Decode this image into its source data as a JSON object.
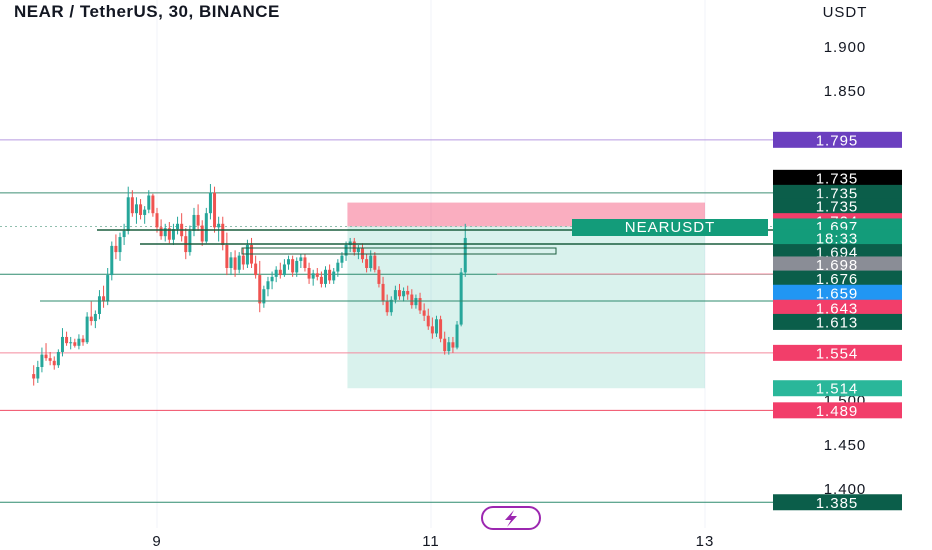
{
  "title": "NEAR / TetherUS, 30, BINANCE",
  "chart_data": {
    "type": "candlestick",
    "title": "NEAR / TetherUS, 30, BINANCE",
    "currency": "USDT",
    "symbol_label": "NEARUSDT",
    "countdown": "18:33",
    "y_ticks": [
      "1.900",
      "1.850",
      "1.500",
      "1.450",
      "1.400"
    ],
    "x_ticks": [
      "9",
      "11",
      "13"
    ],
    "ylim": [
      1.355,
      1.955
    ],
    "xlim": [
      8.1,
      13.5
    ],
    "price_tags": [
      {
        "label": "1.795",
        "value": 1.795,
        "bg": "#6b3fbf",
        "fg": "#ffffff"
      },
      {
        "label": "1.735",
        "value": 1.752,
        "bg": "#000000",
        "fg": "#ffffff"
      },
      {
        "label": "1.735",
        "value": 1.735,
        "bg": "#0b5e4a",
        "fg": "#ffffff"
      },
      {
        "label": "1.735",
        "value": 1.72,
        "bg": "#0b5e4a",
        "fg": "#ffffff"
      },
      {
        "label": "1.724",
        "value": 1.703,
        "bg": "#f23e6a",
        "fg": "#ffffff"
      },
      {
        "label": "1.697",
        "value": 1.697,
        "bg": "#139c7a",
        "fg": "#ffffff"
      },
      {
        "label": "18:33",
        "value": 1.684,
        "bg": "#139c7a",
        "fg": "#ffffff"
      },
      {
        "label": "1.694",
        "value": 1.668,
        "bg": "#0b5e4a",
        "fg": "#ffffff"
      },
      {
        "label": "1.698",
        "value": 1.654,
        "bg": "#8a8d96",
        "fg": "#ffffff"
      },
      {
        "label": "1.676",
        "value": 1.638,
        "bg": "#0b5e4a",
        "fg": "#ffffff"
      },
      {
        "label": "1.659",
        "value": 1.622,
        "bg": "#2196f3",
        "fg": "#ffffff"
      },
      {
        "label": "1.643",
        "value": 1.605,
        "bg": "#f23e6a",
        "fg": "#ffffff"
      },
      {
        "label": "1.613",
        "value": 1.589,
        "bg": "#0b5e4a",
        "fg": "#ffffff"
      },
      {
        "label": "1.554",
        "value": 1.554,
        "bg": "#f23e6a",
        "fg": "#ffffff"
      },
      {
        "label": "1.514",
        "value": 1.514,
        "bg": "#2ab79a",
        "fg": "#ffffff"
      },
      {
        "label": "1.489",
        "value": 1.489,
        "bg": "#f23e6a",
        "fg": "#ffffff"
      },
      {
        "label": "1.385",
        "value": 1.385,
        "bg": "#0b5e4a",
        "fg": "#ffffff"
      }
    ],
    "horizontal_lines": [
      {
        "value": 1.795,
        "color": "#b79ae0"
      },
      {
        "value": 1.735,
        "color": "#3f8f75"
      },
      {
        "value": 1.697,
        "color": "#8fbfae",
        "dotted": true
      },
      {
        "value": 1.643,
        "color": "#2e8b6e"
      },
      {
        "value": 1.554,
        "color": "#f48a9e"
      },
      {
        "value": 1.489,
        "color": "#f04b64"
      },
      {
        "value": 1.385,
        "color": "#2e8b6e"
      }
    ],
    "position": {
      "x_start": 10.39,
      "x_end": 13.0,
      "stop_loss": 1.724,
      "entry": 1.697,
      "target": 1.514
    },
    "candles": [
      [
        8.1,
        1.53,
        1.54,
        1.517,
        1.525
      ],
      [
        8.13,
        1.525,
        1.545,
        1.52,
        1.538
      ],
      [
        8.16,
        1.538,
        1.56,
        1.532,
        1.552
      ],
      [
        8.19,
        1.552,
        1.565,
        1.545,
        1.548
      ],
      [
        8.22,
        1.548,
        1.555,
        1.54,
        1.545
      ],
      [
        8.25,
        1.545,
        1.55,
        1.535,
        1.54
      ],
      [
        8.28,
        1.54,
        1.558,
        1.537,
        1.555
      ],
      [
        8.31,
        1.555,
        1.582,
        1.55,
        1.572
      ],
      [
        8.34,
        1.572,
        1.578,
        1.562,
        1.565
      ],
      [
        8.37,
        1.565,
        1.572,
        1.558,
        1.566
      ],
      [
        8.4,
        1.566,
        1.57,
        1.56,
        1.562
      ],
      [
        8.43,
        1.562,
        1.575,
        1.558,
        1.57
      ],
      [
        8.46,
        1.57,
        1.574,
        1.562,
        1.566
      ],
      [
        8.49,
        1.566,
        1.6,
        1.564,
        1.595
      ],
      [
        8.52,
        1.595,
        1.612,
        1.585,
        1.59
      ],
      [
        8.55,
        1.59,
        1.602,
        1.582,
        1.598
      ],
      [
        8.58,
        1.598,
        1.625,
        1.592,
        1.618
      ],
      [
        8.61,
        1.618,
        1.63,
        1.605,
        1.612
      ],
      [
        8.64,
        1.612,
        1.65,
        1.608,
        1.642
      ],
      [
        8.67,
        1.642,
        1.68,
        1.636,
        1.675
      ],
      [
        8.7,
        1.675,
        1.688,
        1.66,
        1.668
      ],
      [
        8.73,
        1.668,
        1.69,
        1.658,
        1.685
      ],
      [
        8.76,
        1.685,
        1.7,
        1.676,
        1.692
      ],
      [
        8.79,
        1.692,
        1.742,
        1.688,
        1.73
      ],
      [
        8.82,
        1.73,
        1.738,
        1.708,
        1.712
      ],
      [
        8.85,
        1.712,
        1.73,
        1.7,
        1.722
      ],
      [
        8.88,
        1.722,
        1.728,
        1.705,
        1.71
      ],
      [
        8.91,
        1.71,
        1.72,
        1.7,
        1.716
      ],
      [
        8.94,
        1.716,
        1.738,
        1.712,
        1.732
      ],
      [
        8.97,
        1.732,
        1.734,
        1.708,
        1.712
      ],
      [
        9.0,
        1.712,
        1.718,
        1.69,
        1.696
      ],
      [
        9.03,
        1.696,
        1.705,
        1.682,
        1.686
      ],
      [
        9.06,
        1.686,
        1.7,
        1.68,
        1.695
      ],
      [
        9.09,
        1.695,
        1.702,
        1.678,
        1.682
      ],
      [
        9.12,
        1.682,
        1.7,
        1.676,
        1.694
      ],
      [
        9.15,
        1.694,
        1.708,
        1.688,
        1.7
      ],
      [
        9.18,
        1.7,
        1.712,
        1.68,
        1.686
      ],
      [
        9.21,
        1.686,
        1.695,
        1.66,
        1.668
      ],
      [
        9.24,
        1.668,
        1.698,
        1.664,
        1.692
      ],
      [
        9.27,
        1.692,
        1.718,
        1.686,
        1.71
      ],
      [
        9.3,
        1.71,
        1.722,
        1.692,
        1.698
      ],
      [
        9.33,
        1.698,
        1.704,
        1.675,
        1.68
      ],
      [
        9.36,
        1.68,
        1.718,
        1.678,
        1.712
      ],
      [
        9.39,
        1.712,
        1.745,
        1.705,
        1.735
      ],
      [
        9.42,
        1.735,
        1.742,
        1.69,
        1.696
      ],
      [
        9.45,
        1.696,
        1.708,
        1.68,
        1.7
      ],
      [
        9.48,
        1.7,
        1.708,
        1.67,
        1.676
      ],
      [
        9.51,
        1.676,
        1.69,
        1.642,
        1.65
      ],
      [
        9.54,
        1.65,
        1.668,
        1.642,
        1.662
      ],
      [
        9.57,
        1.662,
        1.67,
        1.64,
        1.648
      ],
      [
        9.6,
        1.648,
        1.668,
        1.644,
        1.664
      ],
      [
        9.63,
        1.664,
        1.672,
        1.648,
        1.654
      ],
      [
        9.66,
        1.654,
        1.682,
        1.65,
        1.676
      ],
      [
        9.69,
        1.676,
        1.684,
        1.65,
        1.655
      ],
      [
        9.72,
        1.655,
        1.664,
        1.638,
        1.642
      ],
      [
        9.75,
        1.642,
        1.658,
        1.6,
        1.61
      ],
      [
        9.78,
        1.61,
        1.63,
        1.605,
        1.626
      ],
      [
        9.81,
        1.626,
        1.64,
        1.618,
        1.635
      ],
      [
        9.84,
        1.635,
        1.646,
        1.626,
        1.64
      ],
      [
        9.87,
        1.64,
        1.652,
        1.634,
        1.648
      ],
      [
        9.9,
        1.648,
        1.656,
        1.638,
        1.642
      ],
      [
        9.93,
        1.642,
        1.66,
        1.64,
        1.654
      ],
      [
        9.96,
        1.654,
        1.664,
        1.648,
        1.66
      ],
      [
        9.99,
        1.66,
        1.664,
        1.64,
        1.645
      ],
      [
        10.02,
        1.645,
        1.662,
        1.64,
        1.658
      ],
      [
        10.05,
        1.658,
        1.666,
        1.65,
        1.662
      ],
      [
        10.08,
        1.662,
        1.666,
        1.646,
        1.65
      ],
      [
        10.11,
        1.65,
        1.656,
        1.632,
        1.638
      ],
      [
        10.14,
        1.638,
        1.648,
        1.63,
        1.644
      ],
      [
        10.17,
        1.644,
        1.65,
        1.636,
        1.64
      ],
      [
        10.2,
        1.64,
        1.646,
        1.628,
        1.632
      ],
      [
        10.23,
        1.632,
        1.652,
        1.628,
        1.648
      ],
      [
        10.26,
        1.648,
        1.654,
        1.632,
        1.636
      ],
      [
        10.29,
        1.636,
        1.65,
        1.632,
        1.646
      ],
      [
        10.32,
        1.646,
        1.66,
        1.64,
        1.656
      ],
      [
        10.35,
        1.656,
        1.668,
        1.65,
        1.664
      ],
      [
        10.38,
        1.664,
        1.68,
        1.658,
        1.676
      ],
      [
        10.41,
        1.676,
        1.684,
        1.668,
        1.68
      ],
      [
        10.44,
        1.68,
        1.684,
        1.664,
        1.668
      ],
      [
        10.47,
        1.668,
        1.676,
        1.66,
        1.672
      ],
      [
        10.5,
        1.672,
        1.678,
        1.656,
        1.66
      ],
      [
        10.53,
        1.66,
        1.666,
        1.645,
        1.65
      ],
      [
        10.56,
        1.65,
        1.67,
        1.646,
        1.664
      ],
      [
        10.59,
        1.664,
        1.668,
        1.645,
        1.648
      ],
      [
        10.62,
        1.648,
        1.652,
        1.628,
        1.632
      ],
      [
        10.65,
        1.632,
        1.64,
        1.608,
        1.612
      ],
      [
        10.68,
        1.612,
        1.62,
        1.596,
        1.6
      ],
      [
        10.71,
        1.6,
        1.618,
        1.596,
        1.614
      ],
      [
        10.74,
        1.614,
        1.63,
        1.61,
        1.625
      ],
      [
        10.77,
        1.625,
        1.632,
        1.614,
        1.618
      ],
      [
        10.8,
        1.618,
        1.628,
        1.612,
        1.624
      ],
      [
        10.83,
        1.624,
        1.63,
        1.614,
        1.62
      ],
      [
        10.86,
        1.62,
        1.626,
        1.604,
        1.608
      ],
      [
        10.89,
        1.608,
        1.62,
        1.604,
        1.616
      ],
      [
        10.92,
        1.616,
        1.622,
        1.598,
        1.602
      ],
      [
        10.95,
        1.602,
        1.61,
        1.59,
        1.596
      ],
      [
        10.98,
        1.596,
        1.604,
        1.58,
        1.584
      ],
      [
        11.01,
        1.584,
        1.594,
        1.57,
        1.576
      ],
      [
        11.04,
        1.576,
        1.596,
        1.572,
        1.592
      ],
      [
        11.07,
        1.592,
        1.596,
        1.566,
        1.57
      ],
      [
        11.1,
        1.57,
        1.578,
        1.552,
        1.556
      ],
      [
        11.13,
        1.556,
        1.572,
        1.552,
        1.566
      ],
      [
        11.16,
        1.566,
        1.572,
        1.554,
        1.56
      ],
      [
        11.19,
        1.56,
        1.59,
        1.558,
        1.586
      ],
      [
        11.22,
        1.586,
        1.65,
        1.584,
        1.645
      ],
      [
        11.25,
        1.645,
        1.7,
        1.64,
        1.684
      ]
    ]
  }
}
